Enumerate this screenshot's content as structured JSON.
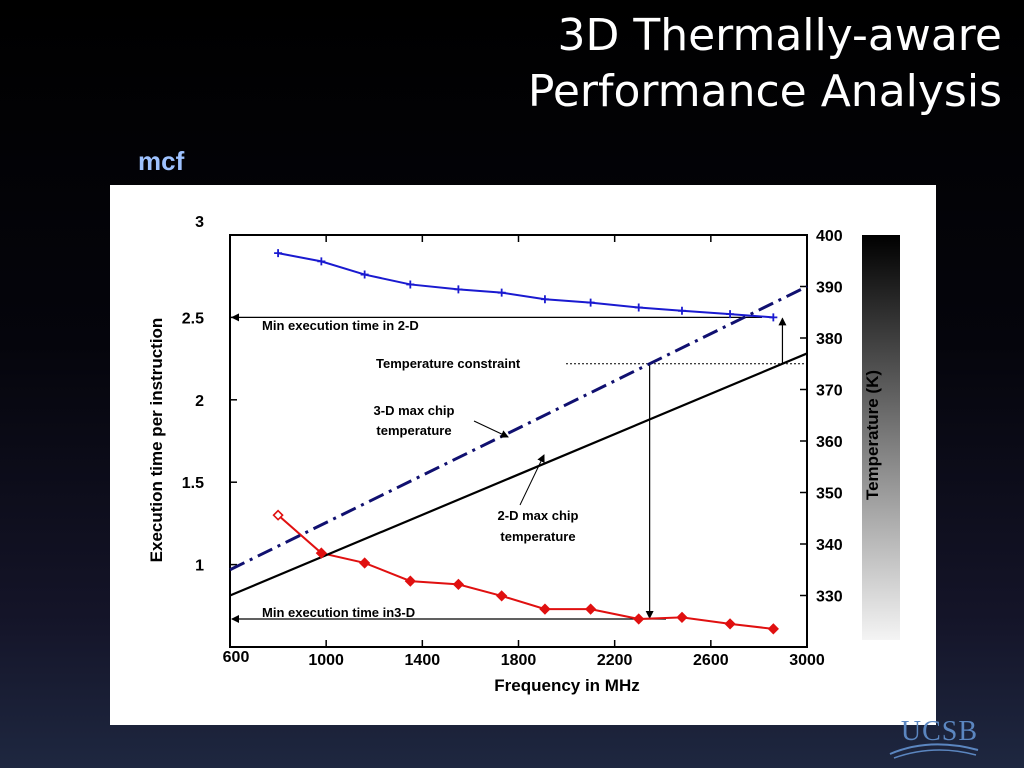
{
  "slide": {
    "title_line1": "3D Thermally-aware",
    "title_line2": "Performance Analysis",
    "subtitle": "mcf",
    "logo_text": "UCSB"
  },
  "chart_data": {
    "type": "line",
    "xlabel": "Frequency in MHz",
    "ylabel": "Execution time per instruction",
    "y2label": "Temperature (K)",
    "xlim": [
      600,
      3000
    ],
    "ylim": [
      0.5,
      3.0
    ],
    "y2lim": [
      320,
      400
    ],
    "x_ticks": [
      600,
      1000,
      1400,
      1800,
      2200,
      2600,
      3000
    ],
    "y_ticks": [
      "3",
      "2.5",
      "2",
      "1.5",
      "1"
    ],
    "y_tick_values": [
      3.0,
      2.5,
      2.0,
      1.5,
      1.0
    ],
    "y2_ticks": [
      "400",
      "390",
      "380",
      "370",
      "360",
      "350",
      "340",
      "330"
    ],
    "y2_tick_values": [
      400,
      390,
      380,
      370,
      360,
      350,
      340,
      330
    ],
    "series": [
      {
        "name": "2-D execution time",
        "axis": "left",
        "color": "#1a1ad0",
        "marker": "plus",
        "x": [
          800,
          980,
          1160,
          1350,
          1550,
          1730,
          1910,
          2100,
          2300,
          2480,
          2680,
          2860
        ],
        "y": [
          2.89,
          2.84,
          2.76,
          2.7,
          2.67,
          2.65,
          2.61,
          2.59,
          2.56,
          2.54,
          2.52,
          2.5
        ]
      },
      {
        "name": "3-D execution time",
        "axis": "left",
        "color": "#e01010",
        "marker": "diamond",
        "x": [
          800,
          980,
          1160,
          1350,
          1550,
          1730,
          1910,
          2100,
          2300,
          2480,
          2680,
          2860
        ],
        "y": [
          1.3,
          1.07,
          1.01,
          0.9,
          0.88,
          0.81,
          0.73,
          0.73,
          0.67,
          0.68,
          0.64,
          0.61
        ]
      },
      {
        "name": "3-D max chip temperature",
        "axis": "right",
        "color": "#101070",
        "style": "dash-dot",
        "x": [
          600,
          3000
        ],
        "y": [
          335,
          390
        ]
      },
      {
        "name": "2-D max chip temperature",
        "axis": "right",
        "color": "#000000",
        "style": "solid",
        "x": [
          600,
          3000
        ],
        "y": [
          330,
          377
        ]
      }
    ],
    "reference_lines": {
      "temperature_constraint_k": 375,
      "min_2d_exec_time": 2.5,
      "min_3d_exec_time": 0.67
    },
    "annotations": {
      "min_2d": "Min execution time in 2-D",
      "min_3d": "Min execution time in3-D",
      "temp_constraint": "Temperature constraint",
      "label_3d_line1": "3-D max chip",
      "label_3d_line2": "temperature",
      "label_2d_line1": "2-D max chip",
      "label_2d_line2": "temperature"
    },
    "grid": false,
    "legend": "none"
  }
}
